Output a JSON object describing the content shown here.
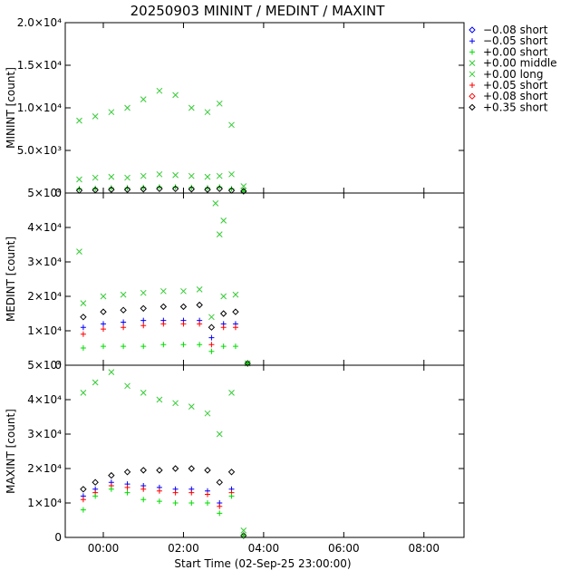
{
  "chart_data": {
    "type": "scatter",
    "title": "20250903 MININT / MEDINT / MAXINT",
    "xlabel": "Start Time (02-Sep-25 23:00:00)",
    "x_ticks": [
      "00:00",
      "02:00",
      "04:00",
      "06:00",
      "08:00"
    ],
    "x_tick_hours": [
      0,
      2,
      4,
      6,
      8
    ],
    "xlim_hours": [
      -0.95,
      9.0
    ],
    "legend_position": "outside-right",
    "legend": [
      {
        "label": "−0.08 short",
        "marker": "diamond",
        "color": "#0000ff"
      },
      {
        "label": "−0.05 short",
        "marker": "plus",
        "color": "#0000ff"
      },
      {
        "label": "+0.00 short",
        "marker": "plus",
        "color": "#00dd00"
      },
      {
        "label": "+0.00 middle",
        "marker": "cross",
        "color": "#33cc33"
      },
      {
        "label": "+0.00 long",
        "marker": "cross",
        "color": "#33cc33"
      },
      {
        "label": "+0.05 short",
        "marker": "plus",
        "color": "#ff0000"
      },
      {
        "label": "+0.08 short",
        "marker": "diamond",
        "color": "#ff0000"
      },
      {
        "label": "+0.35 short",
        "marker": "diamond",
        "color": "#000000"
      }
    ],
    "panels": [
      {
        "ylabel": "MININT [count]",
        "ylim": [
          0,
          20000
        ],
        "y_ticks": [
          0,
          5000,
          10000,
          15000,
          20000
        ],
        "y_tick_labels": [
          "0",
          "5.0×10³",
          "1.0×10⁴",
          "1.5×10⁴",
          "2.0×10⁴"
        ],
        "series": [
          {
            "label_ref": 3,
            "x": [
              -0.6,
              -0.2,
              0.2,
              0.6,
              1.0,
              1.4,
              1.8,
              2.2,
              2.6,
              2.9,
              3.2,
              3.5
            ],
            "y": [
              8500,
              9000,
              9500,
              10000,
              11000,
              12000,
              11500,
              10000,
              9500,
              10500,
              8000,
              800
            ]
          },
          {
            "label_ref": 4,
            "x": [
              -0.6,
              -0.2,
              0.2,
              0.6,
              1.0,
              1.4,
              1.8,
              2.2,
              2.6,
              2.9,
              3.2,
              3.5
            ],
            "y": [
              1600,
              1800,
              1900,
              1800,
              2000,
              2200,
              2100,
              2000,
              1900,
              2000,
              2200,
              300
            ]
          },
          {
            "label_ref": 2,
            "x": [
              -0.6,
              -0.2,
              0.2,
              0.6,
              1.0,
              1.4,
              1.8,
              2.2,
              2.6,
              2.9,
              3.2,
              3.5
            ],
            "y": [
              500,
              550,
              600,
              600,
              650,
              700,
              700,
              650,
              600,
              700,
              500,
              100
            ]
          },
          {
            "label_ref": 7,
            "x": [
              -0.6,
              -0.2,
              0.2,
              0.6,
              1.0,
              1.4,
              1.8,
              2.2,
              2.6,
              2.9,
              3.2,
              3.5
            ],
            "y": [
              300,
              350,
              400,
              400,
              450,
              500,
              500,
              450,
              400,
              500,
              300,
              50
            ]
          }
        ]
      },
      {
        "ylabel": "MEDINT [count]",
        "ylim": [
          0,
          50000
        ],
        "y_ticks": [
          0,
          10000,
          20000,
          30000,
          40000,
          50000
        ],
        "y_tick_labels": [
          "0",
          "1×10⁴",
          "2×10⁴",
          "3×10⁴",
          "4×10⁴",
          "5×10⁴"
        ],
        "series": [
          {
            "label_ref": 3,
            "x": [
              -0.5,
              0.0,
              0.5,
              1.0,
              1.5,
              2.0,
              2.4,
              2.7,
              3.0,
              3.3,
              3.6
            ],
            "y": [
              18000,
              20000,
              20500,
              21000,
              21500,
              21500,
              22000,
              14000,
              20000,
              20500,
              500
            ]
          },
          {
            "label_ref": 7,
            "x": [
              -0.5,
              0.0,
              0.5,
              1.0,
              1.5,
              2.0,
              2.4,
              2.7,
              3.0,
              3.3,
              3.6
            ],
            "y": [
              14000,
              15500,
              16000,
              16500,
              17000,
              17000,
              17500,
              11000,
              15000,
              15500,
              300
            ]
          },
          {
            "label_ref": 1,
            "x": [
              -0.5,
              0.0,
              0.5,
              1.0,
              1.5,
              2.0,
              2.4,
              2.7,
              3.0,
              3.3,
              3.6
            ],
            "y": [
              11000,
              12000,
              12500,
              13000,
              13000,
              13000,
              13000,
              8000,
              12000,
              12000,
              200
            ]
          },
          {
            "label_ref": 5,
            "x": [
              -0.5,
              0.0,
              0.5,
              1.0,
              1.5,
              2.0,
              2.4,
              2.7,
              3.0,
              3.3,
              3.6
            ],
            "y": [
              9000,
              10500,
              11000,
              11500,
              12000,
              12000,
              12000,
              6000,
              11000,
              11000,
              150
            ]
          },
          {
            "label_ref": 2,
            "x": [
              -0.5,
              0.0,
              0.5,
              1.0,
              1.5,
              2.0,
              2.4,
              2.7,
              3.0,
              3.3,
              3.6
            ],
            "y": [
              5000,
              5500,
              5500,
              5500,
              6000,
              6000,
              6000,
              4000,
              5500,
              5500,
              100
            ]
          },
          {
            "label_ref": 4,
            "x": [
              -0.6,
              2.8,
              2.9,
              3.0
            ],
            "y": [
              33000,
              47000,
              38000,
              42000
            ]
          }
        ]
      },
      {
        "ylabel": "MAXINT [count]",
        "ylim": [
          0,
          50000
        ],
        "y_ticks": [
          0,
          10000,
          20000,
          30000,
          40000,
          50000
        ],
        "y_tick_labels": [
          "0",
          "1×10⁴",
          "2×10⁴",
          "3×10⁴",
          "4×10⁴",
          "5×10⁴"
        ],
        "series": [
          {
            "label_ref": 4,
            "x": [
              -0.5,
              -0.2,
              0.2,
              0.6,
              1.0,
              1.4,
              1.8,
              2.2,
              2.6,
              2.9,
              3.2,
              3.5
            ],
            "y": [
              42000,
              45000,
              48000,
              44000,
              42000,
              40000,
              39000,
              38000,
              36000,
              30000,
              42000,
              2000
            ]
          },
          {
            "label_ref": 7,
            "x": [
              -0.5,
              -0.2,
              0.2,
              0.6,
              1.0,
              1.4,
              1.8,
              2.2,
              2.6,
              2.9,
              3.2,
              3.5
            ],
            "y": [
              14000,
              16000,
              18000,
              19000,
              19500,
              19500,
              20000,
              20000,
              19500,
              16000,
              19000,
              500
            ]
          },
          {
            "label_ref": 1,
            "x": [
              -0.5,
              -0.2,
              0.2,
              0.6,
              1.0,
              1.4,
              1.8,
              2.2,
              2.6,
              2.9,
              3.2,
              3.5
            ],
            "y": [
              12000,
              14000,
              16000,
              15500,
              15000,
              14500,
              14000,
              14000,
              13500,
              10000,
              14000,
              300
            ]
          },
          {
            "label_ref": 5,
            "x": [
              -0.5,
              -0.2,
              0.2,
              0.6,
              1.0,
              1.4,
              1.8,
              2.2,
              2.6,
              2.9,
              3.2,
              3.5
            ],
            "y": [
              11000,
              13000,
              15000,
              14500,
              14000,
              13500,
              13000,
              13000,
              12500,
              9000,
              13000,
              200
            ]
          },
          {
            "label_ref": 2,
            "x": [
              -0.5,
              -0.2,
              0.2,
              0.6,
              1.0,
              1.4,
              1.8,
              2.2,
              2.6,
              2.9,
              3.2,
              3.5
            ],
            "y": [
              8000,
              12000,
              14000,
              13000,
              11000,
              10500,
              10000,
              10000,
              10000,
              7000,
              12000,
              100
            ]
          }
        ]
      }
    ]
  }
}
